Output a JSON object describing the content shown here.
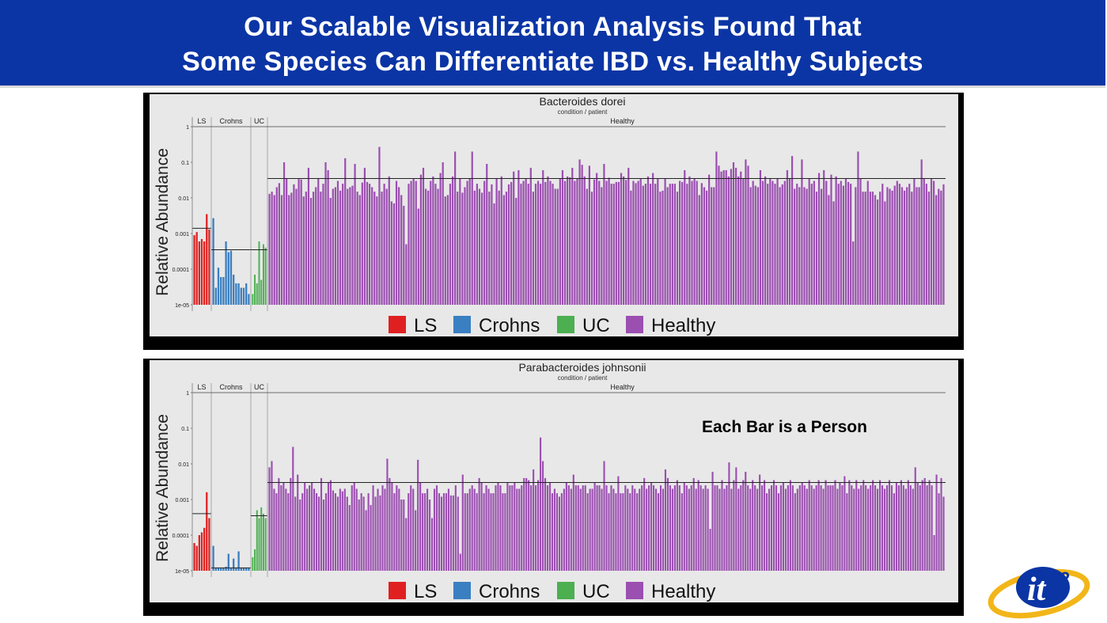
{
  "slide": {
    "title_line1": "Our Scalable Visualization Analysis Found That",
    "title_line2": "Some Species Can Differentiate IBD vs. Healthy Subjects",
    "note": "Each Bar is a Person",
    "logo_text": "it",
    "logo_superscript": "2"
  },
  "colors": {
    "header_bg": "#0b35a5",
    "LS": "#e02020",
    "Crohns": "#3a7fc1",
    "UC": "#4caf50",
    "Healthy": "#9b4fb0"
  },
  "chart_data": [
    {
      "type": "bar",
      "title": "Bacteroides dorei",
      "subtitle": "condition / patient",
      "ylabel": "Relative Abundance",
      "yscale": "log",
      "ylim": [
        1e-05,
        1
      ],
      "yticks": [
        "1",
        "0.1",
        "0.01",
        "0.001",
        "0.0001",
        "1e-05"
      ],
      "legend": [
        "LS",
        "Crohns",
        "UC",
        "Healthy"
      ],
      "legend_position": "bottom",
      "groups": [
        {
          "name": "LS",
          "mean": 0.0014,
          "values": [
            0.0009,
            0.0011,
            0.0006,
            0.0007,
            0.0006,
            0.0035,
            0.0013
          ]
        },
        {
          "name": "Crohns",
          "mean": 0.00035,
          "values": [
            0.0027,
            3e-05,
            0.00011,
            6e-05,
            6e-05,
            0.0006,
            0.0003,
            0.00033,
            7e-05,
            4e-05,
            4e-05,
            3e-05,
            3e-05,
            4e-05,
            2e-05
          ]
        },
        {
          "name": "UC",
          "mean": 0.00035,
          "values": [
            2e-05,
            7e-05,
            4e-05,
            0.0006,
            5e-05,
            0.0005,
            0.0004
          ]
        },
        {
          "name": "Healthy",
          "mean": 0.035,
          "values": [
            0.013,
            0.015,
            0.012,
            0.02,
            0.026,
            0.012,
            0.1,
            0.035,
            0.012,
            0.014,
            0.024,
            0.018,
            0.034,
            0.033,
            0.011,
            0.015,
            0.07,
            0.01,
            0.015,
            0.02,
            0.036,
            0.015,
            0.025,
            0.1,
            0.06,
            0.01,
            0.018,
            0.02,
            0.03,
            0.016,
            0.025,
            0.13,
            0.018,
            0.02,
            0.022,
            0.09,
            0.015,
            0.012,
            0.027,
            0.07,
            0.028,
            0.025,
            0.02,
            0.015,
            0.011,
            0.27,
            0.015,
            0.025,
            0.018,
            0.04,
            0.008,
            0.007,
            0.03,
            0.02,
            0.012,
            0.006,
            0.0005,
            0.025,
            0.03,
            0.035,
            0.03,
            0.005,
            0.045,
            0.07,
            0.018,
            0.016,
            0.03,
            0.04,
            0.025,
            0.018,
            0.05,
            0.1,
            0.011,
            0.012,
            0.025,
            0.04,
            0.2,
            0.015,
            0.035,
            0.014,
            0.02,
            0.03,
            0.035,
            0.2,
            0.016,
            0.025,
            0.018,
            0.014,
            0.03,
            0.09,
            0.015,
            0.024,
            0.007,
            0.035,
            0.016,
            0.04,
            0.012,
            0.015,
            0.024,
            0.028,
            0.055,
            0.01,
            0.06,
            0.025,
            0.03,
            0.035,
            0.025,
            0.07,
            0.015,
            0.025,
            0.03,
            0.025,
            0.06,
            0.028,
            0.04,
            0.03,
            0.025,
            0.018,
            0.018,
            0.035,
            0.06,
            0.03,
            0.04,
            0.038,
            0.07,
            0.03,
            0.035,
            0.12,
            0.085,
            0.04,
            0.018,
            0.08,
            0.015,
            0.033,
            0.05,
            0.03,
            0.02,
            0.09,
            0.03,
            0.037,
            0.025,
            0.025,
            0.028,
            0.028,
            0.05,
            0.04,
            0.032,
            0.07,
            0.016,
            0.03,
            0.026,
            0.03,
            0.035,
            0.022,
            0.025,
            0.04,
            0.025,
            0.05,
            0.025,
            0.035,
            0.015,
            0.016,
            0.035,
            0.02,
            0.025,
            0.025,
            0.025,
            0.015,
            0.03,
            0.028,
            0.06,
            0.025,
            0.04,
            0.03,
            0.035,
            0.03,
            0.012,
            0.026,
            0.02,
            0.016,
            0.045,
            0.02,
            0.02,
            0.2,
            0.08,
            0.055,
            0.06,
            0.06,
            0.04,
            0.065,
            0.1,
            0.07,
            0.04,
            0.055,
            0.035,
            0.12,
            0.08,
            0.02,
            0.03,
            0.022,
            0.02,
            0.06,
            0.03,
            0.04,
            0.025,
            0.035,
            0.03,
            0.025,
            0.035,
            0.02,
            0.024,
            0.03,
            0.06,
            0.035,
            0.15,
            0.018,
            0.025,
            0.02,
            0.12,
            0.02,
            0.018,
            0.035,
            0.025,
            0.03,
            0.015,
            0.05,
            0.018,
            0.06,
            0.03,
            0.012,
            0.045,
            0.008,
            0.04,
            0.025,
            0.03,
            0.022,
            0.035,
            0.028,
            0.025,
            0.0006,
            0.02,
            0.2,
            0.035,
            0.015,
            0.015,
            0.03,
            0.015,
            0.015,
            0.012,
            0.009,
            0.015,
            0.025,
            0.008,
            0.02,
            0.018,
            0.016,
            0.022,
            0.03,
            0.025,
            0.02,
            0.016,
            0.02,
            0.025,
            0.015,
            0.035,
            0.02,
            0.02,
            0.12,
            0.035,
            0.025,
            0.015,
            0.035,
            0.03,
            0.012,
            0.018,
            0.016,
            0.024
          ]
        }
      ]
    },
    {
      "type": "bar",
      "title": "Parabacteroides johnsonii",
      "subtitle": "condition / patient",
      "ylabel": "Relative Abundance",
      "yscale": "log",
      "ylim": [
        1e-05,
        1
      ],
      "yticks": [
        "1",
        "0.1",
        "0.01",
        "0.001",
        "0.0001",
        "1e-05"
      ],
      "legend": [
        "LS",
        "Crohns",
        "UC",
        "Healthy"
      ],
      "legend_position": "bottom",
      "groups": [
        {
          "name": "LS",
          "mean": 0.0004,
          "values": [
            6e-05,
            5e-05,
            0.0001,
            0.00012,
            0.00016,
            0.0016,
            0.0003
          ]
        },
        {
          "name": "Crohns",
          "mean": 1.2e-05,
          "values": [
            5e-05,
            1.2e-05,
            1.2e-05,
            1.2e-05,
            1.2e-05,
            1.3e-05,
            3e-05,
            1.2e-05,
            2.2e-05,
            1.2e-05,
            3.5e-05,
            1.2e-05,
            1.2e-05,
            1.2e-05,
            1.2e-05
          ]
        },
        {
          "name": "UC",
          "mean": 0.00035,
          "values": [
            2.4e-05,
            4e-05,
            0.0005,
            0.0003,
            0.0006,
            0.0004,
            0.0003
          ]
        },
        {
          "name": "Healthy",
          "mean": 0.003,
          "values": [
            0.008,
            0.012,
            0.002,
            0.0015,
            0.004,
            0.0025,
            0.003,
            0.002,
            0.0015,
            0.004,
            0.03,
            0.0012,
            0.005,
            0.001,
            0.0015,
            0.003,
            0.002,
            0.0025,
            0.003,
            0.002,
            0.0015,
            0.0012,
            0.004,
            0.001,
            0.0015,
            0.003,
            0.0035,
            0.0018,
            0.0015,
            0.0012,
            0.002,
            0.0017,
            0.002,
            0.0012,
            0.0007,
            0.0025,
            0.003,
            0.002,
            0.001,
            0.0015,
            0.0012,
            0.0005,
            0.0015,
            0.0007,
            0.0025,
            0.0012,
            0.002,
            0.0013,
            0.0025,
            0.002,
            0.014,
            0.004,
            0.003,
            0.0015,
            0.0025,
            0.002,
            0.001,
            0.001,
            0.0003,
            0.0015,
            0.0025,
            0.002,
            0.0005,
            0.013,
            0.003,
            0.0015,
            0.0015,
            0.002,
            0.001,
            0.0003,
            0.002,
            0.0025,
            0.0015,
            0.0012,
            0.0015,
            0.0015,
            0.002,
            0.0013,
            0.0013,
            0.0025,
            0.0012,
            3e-05,
            0.005,
            0.0015,
            0.0015,
            0.002,
            0.0025,
            0.002,
            0.0015,
            0.004,
            0.003,
            0.0015,
            0.0025,
            0.002,
            0.0015,
            0.0015,
            0.0025,
            0.003,
            0.0025,
            0.0015,
            0.0015,
            0.003,
            0.0025,
            0.0025,
            0.003,
            0.002,
            0.002,
            0.0025,
            0.004,
            0.004,
            0.0035,
            0.0025,
            0.007,
            0.0025,
            0.0035,
            0.055,
            0.012,
            0.004,
            0.0025,
            0.003,
            0.0015,
            0.002,
            0.0015,
            0.0012,
            0.0015,
            0.002,
            0.003,
            0.0025,
            0.002,
            0.005,
            0.0025,
            0.0025,
            0.002,
            0.0025,
            0.0025,
            0.0015,
            0.002,
            0.002,
            0.003,
            0.0025,
            0.0025,
            0.002,
            0.012,
            0.0025,
            0.0015,
            0.0025,
            0.002,
            0.0015,
            0.0045,
            0.0015,
            0.0015,
            0.0025,
            0.002,
            0.0015,
            0.0025,
            0.002,
            0.0015,
            0.002,
            0.0025,
            0.004,
            0.002,
            0.0025,
            0.003,
            0.0025,
            0.002,
            0.0015,
            0.0025,
            0.002,
            0.007,
            0.004,
            0.0025,
            0.002,
            0.0025,
            0.0035,
            0.0025,
            0.0015,
            0.003,
            0.0025,
            0.002,
            0.0025,
            0.004,
            0.002,
            0.0035,
            0.0025,
            0.002,
            0.0025,
            0.002,
            0.00015,
            0.006,
            0.0025,
            0.0025,
            0.002,
            0.0035,
            0.002,
            0.0025,
            0.011,
            0.002,
            0.0035,
            0.008,
            0.002,
            0.0025,
            0.0035,
            0.006,
            0.0025,
            0.002,
            0.0035,
            0.0025,
            0.002,
            0.005,
            0.0025,
            0.0035,
            0.0015,
            0.002,
            0.0025,
            0.0035,
            0.0025,
            0.0015,
            0.0025,
            0.003,
            0.002,
            0.0025,
            0.0035,
            0.0025,
            0.0015,
            0.002,
            0.0025,
            0.003,
            0.0025,
            0.002,
            0.0035,
            0.0025,
            0.002,
            0.0025,
            0.0035,
            0.0025,
            0.002,
            0.0035,
            0.0025,
            0.0025,
            0.0025,
            0.0035,
            0.002,
            0.003,
            0.0025,
            0.0045,
            0.0015,
            0.0035,
            0.0025,
            0.002,
            0.0035,
            0.002,
            0.0025,
            0.0035,
            0.0025,
            0.002,
            0.0025,
            0.0035,
            0.0025,
            0.002,
            0.0035,
            0.0025,
            0.002,
            0.0025,
            0.0035,
            0.0025,
            0.0015,
            0.003,
            0.0025,
            0.0035,
            0.0025,
            0.002,
            0.0035,
            0.0025,
            0.002,
            0.008,
            0.003,
            0.0025,
            0.0035,
            0.004,
            0.0025,
            0.0035,
            0.0025,
            0.0001,
            0.005,
            0.0015,
            0.004,
            0.0012
          ]
        }
      ]
    }
  ]
}
